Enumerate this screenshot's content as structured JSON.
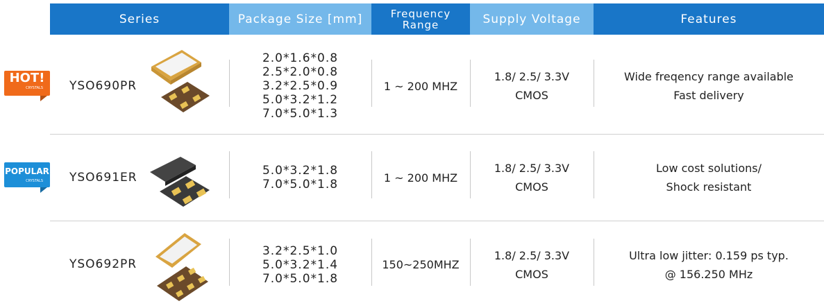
{
  "header": [
    "Series",
    "Package Size [mm]",
    [
      "Frequency",
      "Range"
    ],
    "Supply Voltage",
    "Features"
  ],
  "rows": [
    {
      "badge": "HOT!",
      "badge_sub": "CRYSTALS",
      "series": "YSO690PR",
      "package": [
        "2.0*1.6*0.8",
        "2.5*2.0*0.8",
        "3.2*2.5*0.9",
        "5.0*3.2*1.2",
        "7.0*5.0*1.3"
      ],
      "frequency": "1 ~ 200 MHZ",
      "voltage": [
        "1.8/ 2.5/ 3.3V",
        "CMOS"
      ],
      "features": [
        "Wide freqency range available",
        "Fast delivery"
      ]
    },
    {
      "badge": "POPULAR",
      "badge_sub": "CRYSTALS",
      "series": "YSO691ER",
      "package": [
        "5.0*3.2*1.8",
        "7.0*5.0*1.8"
      ],
      "frequency": "1 ~ 200 MHZ",
      "voltage": [
        "1.8/ 2.5/ 3.3V",
        "CMOS"
      ],
      "features": [
        "Low cost solutions/",
        "Shock resistant"
      ]
    },
    {
      "series": "YSO692PR",
      "package": [
        "3.2*2.5*1.0",
        "5.0*3.2*1.4",
        "7.0*5.0*1.8"
      ],
      "frequency": "150~250MHZ",
      "voltage": [
        "1.8/ 2.5/ 3.3V",
        "CMOS"
      ],
      "features": [
        "Ultra low jitter: 0.159 ps typ.",
        "@ 156.250 MHz"
      ]
    }
  ]
}
